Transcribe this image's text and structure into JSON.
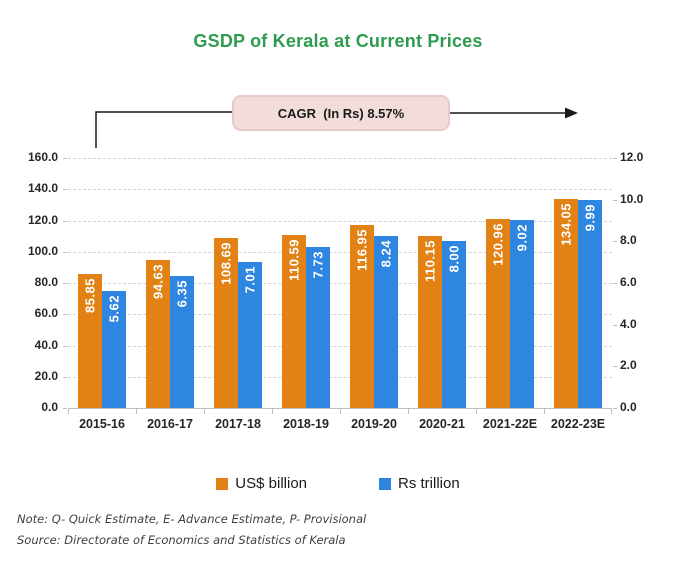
{
  "title": "GSDP of Kerala at Current Prices",
  "annotation": {
    "cagr_text": "CAGR  (In Rs) 8.57%"
  },
  "chart_data": {
    "type": "bar",
    "title": "GSDP of Kerala at Current Prices",
    "categories": [
      "2015-16",
      "2016-17",
      "2017-18",
      "2018-19",
      "2019-20",
      "2020-21",
      "2021-22E",
      "2022-23E"
    ],
    "series": [
      {
        "name": "US$ billion",
        "axis": "left",
        "color": "#E28215",
        "values": [
          85.85,
          94.63,
          108.69,
          110.59,
          116.95,
          110.15,
          120.96,
          134.05
        ],
        "labels": [
          "85.85",
          "94.63",
          "108.69",
          "110.59",
          "116.95",
          "110.15",
          "120.96",
          "134.05"
        ]
      },
      {
        "name": "Rs trillion",
        "axis": "right",
        "color": "#2F86E0",
        "values": [
          5.62,
          6.35,
          7.01,
          7.73,
          8.24,
          8.0,
          9.02,
          9.99
        ],
        "labels": [
          "5.62",
          "6.35",
          "7.01",
          "7.73",
          "8.24",
          "8.00",
          "9.02",
          "9.99"
        ]
      }
    ],
    "left_axis": {
      "min": 0,
      "max": 160,
      "step": 20,
      "tick_labels": [
        "0.0",
        "20.0",
        "40.0",
        "60.0",
        "80.0",
        "100.0",
        "120.0",
        "140.0",
        "160.0"
      ]
    },
    "right_axis": {
      "min": 0,
      "max": 12,
      "step": 2,
      "tick_labels": [
        "0.0",
        "2.0",
        "4.0",
        "6.0",
        "8.0",
        "10.0",
        "12.0"
      ]
    },
    "grid": "horizontal dashed",
    "legend_position": "bottom",
    "data_label_style": "white bold, rotated 90°, inside bar top"
  },
  "notes": {
    "note": "Note: Q- Quick Estimate, E- Advance Estimate, P- Provisional",
    "source": "Source: Directorate of Economics and Statistics of Kerala"
  }
}
